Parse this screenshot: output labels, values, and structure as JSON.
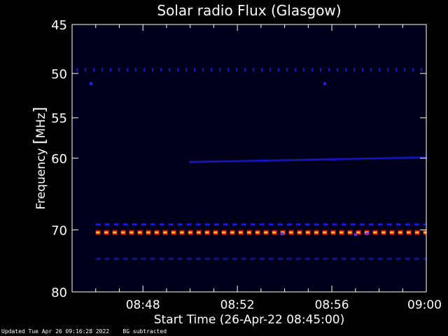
{
  "chart_data": {
    "type": "heatmap",
    "title": "Solar radio Flux (Glasgow)",
    "xlabel": "Start Time (26-Apr-22 08:45:00)",
    "ylabel_text": "Frequency ",
    "ylabel_bracket_open": "[",
    "ylabel_unit": "MHz",
    "ylabel_bracket_close": "]",
    "ylim": [
      45,
      80
    ],
    "y_scale": "log",
    "y_ticks": [
      45,
      50,
      55,
      60,
      70,
      80
    ],
    "y_tick_labels": [
      "45",
      "50",
      "55",
      "60",
      "70",
      "80"
    ],
    "xlim_minutes": [
      0,
      15
    ],
    "x_ticks_minutes": [
      3,
      7,
      11,
      15
    ],
    "x_tick_labels": [
      "08:48",
      "08:52",
      "08:56",
      "09:00"
    ],
    "background_color": "#00001a",
    "bands": [
      {
        "freq": 49.6,
        "t_start": 0.0,
        "t_end": 15.0,
        "color": "#1111cc",
        "style": "dotted"
      },
      {
        "freq": 69.2,
        "t_start": 1.0,
        "t_end": 15.0,
        "color": "#1a1ae0",
        "style": "dashed"
      },
      {
        "freq": 70.4,
        "t_start": 1.0,
        "t_end": 15.0,
        "color": "#ff6a00",
        "style": "dashed-hot"
      },
      {
        "freq": 74.5,
        "t_start": 1.0,
        "t_end": 15.0,
        "color": "#14148a",
        "style": "dashed"
      }
    ],
    "drifts": [
      {
        "t_start": 5.0,
        "t_end": 15.0,
        "f_start": 60.5,
        "f_end": 59.9,
        "color": "#1515b0"
      }
    ],
    "spots": [
      {
        "t": 0.8,
        "freq": 51.1,
        "color": "#2222ff"
      },
      {
        "t": 10.7,
        "freq": 51.1,
        "color": "#2222ff"
      },
      {
        "t": 8.9,
        "freq": 70.6,
        "color": "#6633ff"
      },
      {
        "t": 12.0,
        "freq": 70.7,
        "color": "#6633ff"
      },
      {
        "t": 12.5,
        "freq": 70.6,
        "color": "#6633ff"
      }
    ]
  },
  "footer": {
    "updated": "Updated Tue Apr 26 09:16:28 2022",
    "note": "BG subtracted"
  }
}
